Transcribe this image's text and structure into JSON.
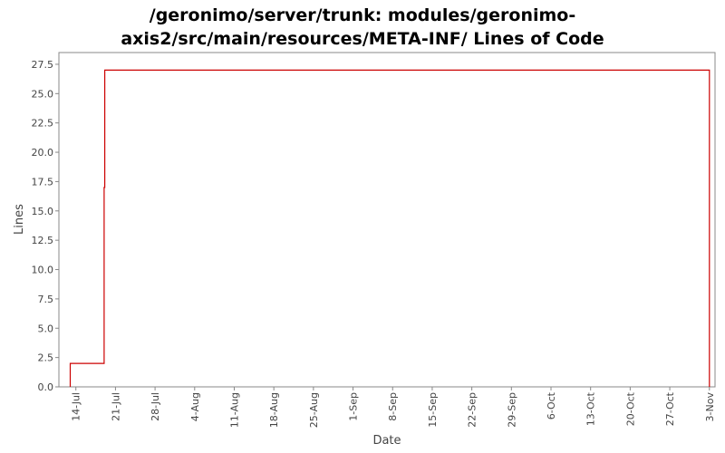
{
  "chart_data": {
    "type": "line",
    "title_lines": [
      "/geronimo/server/trunk: modules/geronimo-",
      "axis2/src/main/resources/META-INF/ Lines of Code"
    ],
    "xlabel": "Date",
    "ylabel": "Lines",
    "ylim": [
      0,
      28.5
    ],
    "xlim": [
      "2006-07-11",
      "2006-11-04"
    ],
    "y_ticks": [
      0.0,
      2.5,
      5.0,
      7.5,
      10.0,
      12.5,
      15.0,
      17.5,
      20.0,
      22.5,
      25.0,
      27.5
    ],
    "x_ticks": [
      {
        "label": "14-Jul",
        "date": "2006-07-14"
      },
      {
        "label": "21-Jul",
        "date": "2006-07-21"
      },
      {
        "label": "28-Jul",
        "date": "2006-07-28"
      },
      {
        "label": "4-Aug",
        "date": "2006-08-04"
      },
      {
        "label": "11-Aug",
        "date": "2006-08-11"
      },
      {
        "label": "18-Aug",
        "date": "2006-08-18"
      },
      {
        "label": "25-Aug",
        "date": "2006-08-25"
      },
      {
        "label": "1-Sep",
        "date": "2006-09-01"
      },
      {
        "label": "8-Sep",
        "date": "2006-09-08"
      },
      {
        "label": "15-Sep",
        "date": "2006-09-15"
      },
      {
        "label": "22-Sep",
        "date": "2006-09-22"
      },
      {
        "label": "29-Sep",
        "date": "2006-09-29"
      },
      {
        "label": "6-Oct",
        "date": "2006-10-06"
      },
      {
        "label": "13-Oct",
        "date": "2006-10-13"
      },
      {
        "label": "20-Oct",
        "date": "2006-10-20"
      },
      {
        "label": "27-Oct",
        "date": "2006-10-27"
      },
      {
        "label": "3-Nov",
        "date": "2006-11-03"
      }
    ],
    "series": [
      {
        "color": "#cc0000",
        "step": true,
        "points": [
          {
            "x": "2006-07-13",
            "y": 0
          },
          {
            "x": "2006-07-13",
            "y": 2
          },
          {
            "x": "2006-07-19",
            "y": 2
          },
          {
            "x": "2006-07-19",
            "y": 17
          },
          {
            "x": "2006-07-19.1",
            "y": 17
          },
          {
            "x": "2006-07-19.1",
            "y": 27
          },
          {
            "x": "2006-11-03",
            "y": 27
          },
          {
            "x": "2006-11-03",
            "y": 0
          }
        ]
      }
    ],
    "grid": false,
    "legend": "none"
  }
}
